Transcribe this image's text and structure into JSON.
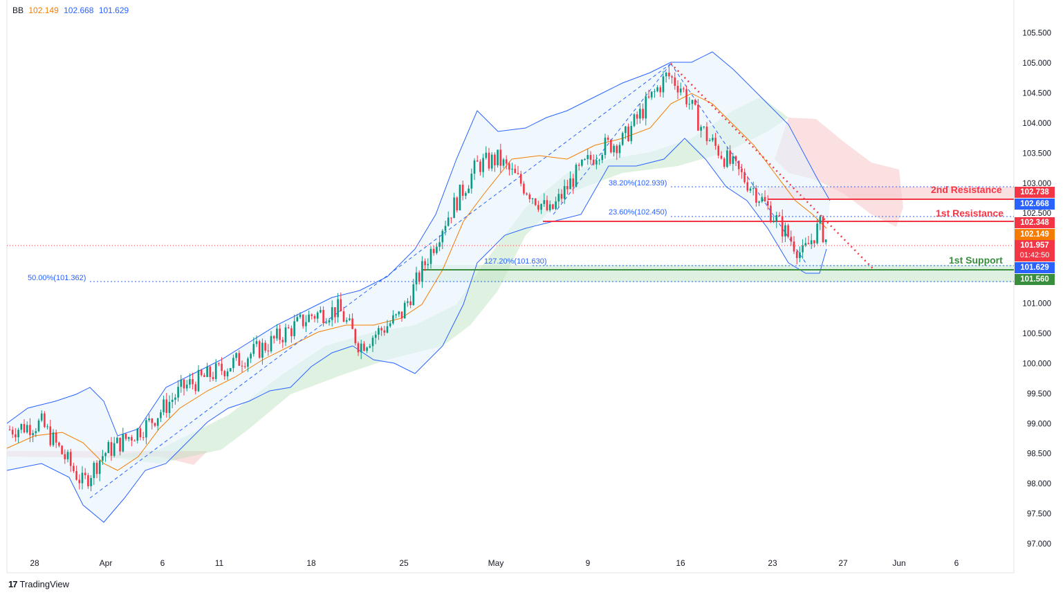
{
  "legend": {
    "indicator_name": "BB",
    "values": [
      "102.149",
      "102.668",
      "101.629"
    ]
  },
  "brand": {
    "logo_text": "TradingView"
  },
  "levels": {
    "resistance_2": {
      "label": "2nd Resistance",
      "price": 102.738,
      "price_label": "102.738",
      "color": "#f23645"
    },
    "resistance_1": {
      "label": "1st Resistance",
      "price": 102.348,
      "price_label": "102.348",
      "color": "#f23645"
    },
    "support_1": {
      "label": "1st Support",
      "price": 101.56,
      "price_label": "101.560",
      "color": "#388e3c"
    }
  },
  "fib_labels": {
    "fib_382": "38.20%(102.939)",
    "fib_236": "23.60%(102.450)",
    "fib_1272": "127.20%(101.630)",
    "fib_500": "50.00%(101.362)"
  },
  "price_tags": {
    "bb_upper": {
      "text": "102.668",
      "color": "#2962ff"
    },
    "bb_basis": {
      "text": "102.149",
      "color": "#f57c00"
    },
    "last_price": {
      "text": "101.957",
      "countdown": "01:42:50",
      "color": "#f23645"
    },
    "bb_lower": {
      "text": "101.629",
      "color": "#2962ff"
    }
  },
  "chart_data": {
    "type": "candlestick",
    "y_axis": {
      "ticks": [
        "105.500",
        "105.000",
        "104.500",
        "104.000",
        "103.500",
        "103.000",
        "102.500",
        "101.000",
        "100.500",
        "100.000",
        "99.500",
        "99.000",
        "98.500",
        "98.000",
        "97.500",
        "97.000"
      ],
      "range": [
        96.8,
        105.9
      ]
    },
    "x_axis": {
      "ticks": [
        "28",
        "Apr",
        "6",
        "11",
        "18",
        "25",
        "May",
        "9",
        "16",
        "23",
        "27",
        "Jun",
        "6"
      ]
    },
    "price_path": [
      [
        "28 Mar",
        98.9
      ],
      [
        "30 Mar",
        99.0
      ],
      [
        "1 Apr",
        98.0
      ],
      [
        "Apr",
        98.5
      ],
      [
        "6 Apr",
        99.0
      ],
      [
        "8 Apr",
        99.6
      ],
      [
        "11 Apr",
        99.9
      ],
      [
        "14 Apr",
        100.3
      ],
      [
        "18 Apr",
        100.8
      ],
      [
        "20 Apr",
        100.9
      ],
      [
        "22 Apr",
        100.3
      ],
      [
        "25 Apr",
        100.8
      ],
      [
        "27 Apr",
        102.3
      ],
      [
        "29 Apr",
        103.3
      ],
      [
        "May",
        103.4
      ],
      [
        "5 May",
        102.5
      ],
      [
        "7 May",
        103.1
      ],
      [
        "9 May",
        103.6
      ],
      [
        "11 May",
        103.7
      ],
      [
        "13 May",
        104.4
      ],
      [
        "15 May",
        104.8
      ],
      [
        "16 May",
        104.6
      ],
      [
        "18 May",
        103.8
      ],
      [
        "20 May",
        103.4
      ],
      [
        "23 May",
        102.9
      ],
      [
        "24 May",
        101.8
      ],
      [
        "25 May",
        102.3
      ],
      [
        "26 May",
        101.96
      ]
    ],
    "bollinger": {
      "basis": 102.149,
      "upper": 102.668,
      "lower": 101.629
    }
  }
}
